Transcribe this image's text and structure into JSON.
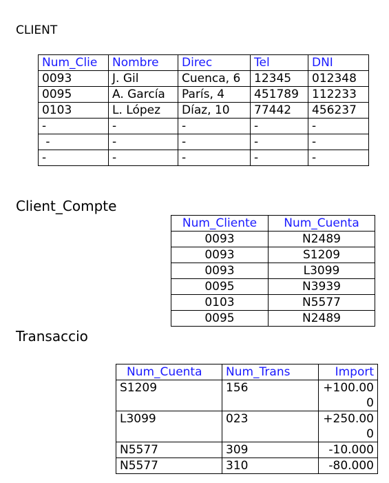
{
  "client": {
    "title": "CLIENT",
    "headers": [
      "Num_Clie",
      "Nombre",
      "Direc",
      "Tel",
      "DNI"
    ],
    "rows": [
      [
        "0093",
        "J. Gil",
        "Cuenca, 6",
        "12345",
        "012348"
      ],
      [
        "0095",
        "A. García",
        "París, 4",
        "451789",
        "112233"
      ],
      [
        "0103",
        "L. López",
        "Díaz, 10",
        "77442",
        "456237"
      ],
      [
        "-",
        "-",
        "-",
        "-",
        "-"
      ],
      [
        " -",
        "-",
        "-",
        "-",
        "-"
      ],
      [
        "-",
        "-",
        "-",
        "-",
        "-"
      ]
    ]
  },
  "client_compte": {
    "title": "Client_Compte",
    "headers": [
      "Num_Cliente",
      "Num_Cuenta"
    ],
    "rows": [
      [
        "0093",
        "N2489"
      ],
      [
        "0093",
        "S1209"
      ],
      [
        "0093",
        "L3099"
      ],
      [
        "0095",
        "N3939"
      ],
      [
        "0103",
        "N5577"
      ],
      [
        "0095",
        "N2489"
      ]
    ]
  },
  "transaccio": {
    "title": "Transaccio",
    "headers": [
      "Num_Cuenta",
      "Num_Trans",
      "Import"
    ],
    "rows": [
      [
        "S1209",
        "156",
        "+100.000"
      ],
      [
        "L3099",
        "023",
        "+250.000"
      ],
      [
        "N5577",
        "309",
        "-10.000"
      ],
      [
        "N5577",
        "310",
        "-80.000"
      ]
    ]
  }
}
